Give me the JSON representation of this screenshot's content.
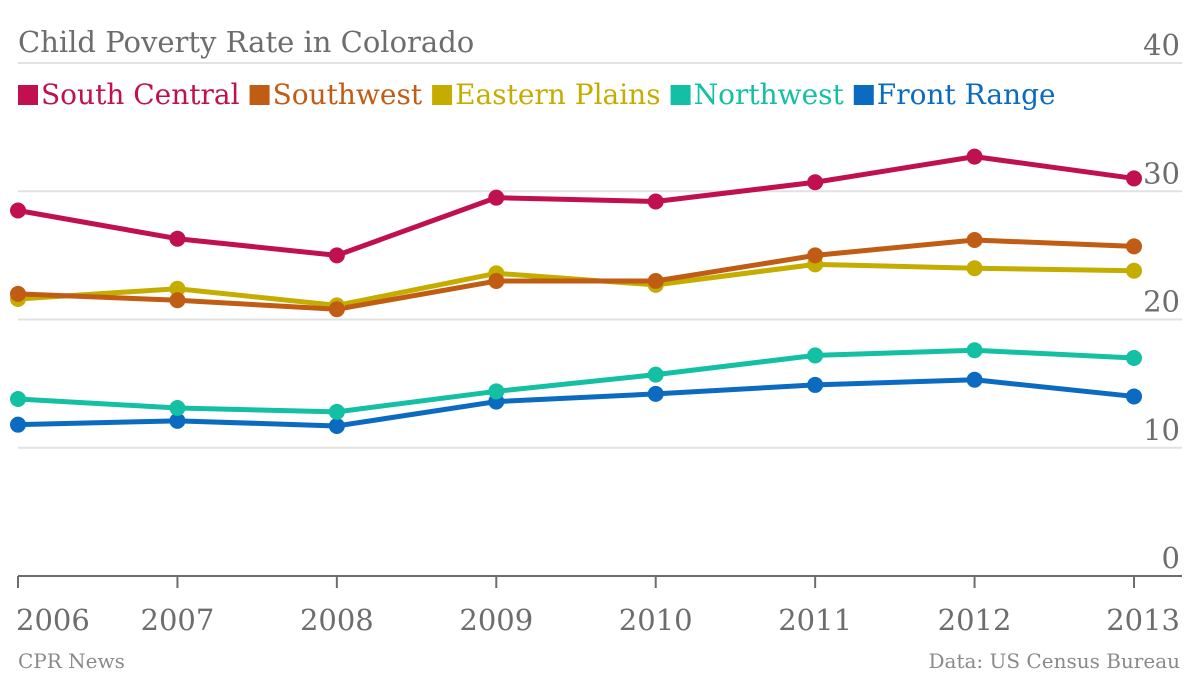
{
  "chart_data": {
    "type": "line",
    "title": "Child Poverty Rate in Colorado",
    "xlabel": "",
    "ylabel": "",
    "x": [
      "2006",
      "2007",
      "2008",
      "2009",
      "2010",
      "2011",
      "2012",
      "2013"
    ],
    "ylim": [
      0,
      40
    ],
    "yticks": [
      "0",
      "10",
      "20",
      "30",
      "40"
    ],
    "grid": true,
    "legend_position": "top",
    "series": [
      {
        "name": "South Central",
        "color": "#c0104f",
        "values": [
          28.5,
          26.3,
          25.0,
          29.5,
          29.2,
          30.7,
          32.7,
          31.0
        ]
      },
      {
        "name": "Southwest",
        "color": "#c05c13",
        "values": [
          22.0,
          21.5,
          20.8,
          23.0,
          23.0,
          25.0,
          26.2,
          25.7
        ]
      },
      {
        "name": "Eastern Plains",
        "color": "#c5ad00",
        "values": [
          21.6,
          22.4,
          21.1,
          23.6,
          22.7,
          24.3,
          24.0,
          23.8
        ]
      },
      {
        "name": "Northwest",
        "color": "#13c0a3",
        "values": [
          13.8,
          13.1,
          12.8,
          14.4,
          15.7,
          17.2,
          17.6,
          17.0
        ]
      },
      {
        "name": "Front Range",
        "color": "#0a6bc1",
        "values": [
          11.8,
          12.1,
          11.7,
          13.6,
          14.2,
          14.9,
          15.3,
          14.0
        ]
      }
    ],
    "source_left": "CPR News",
    "source_right": "Data: US Census Bureau"
  }
}
